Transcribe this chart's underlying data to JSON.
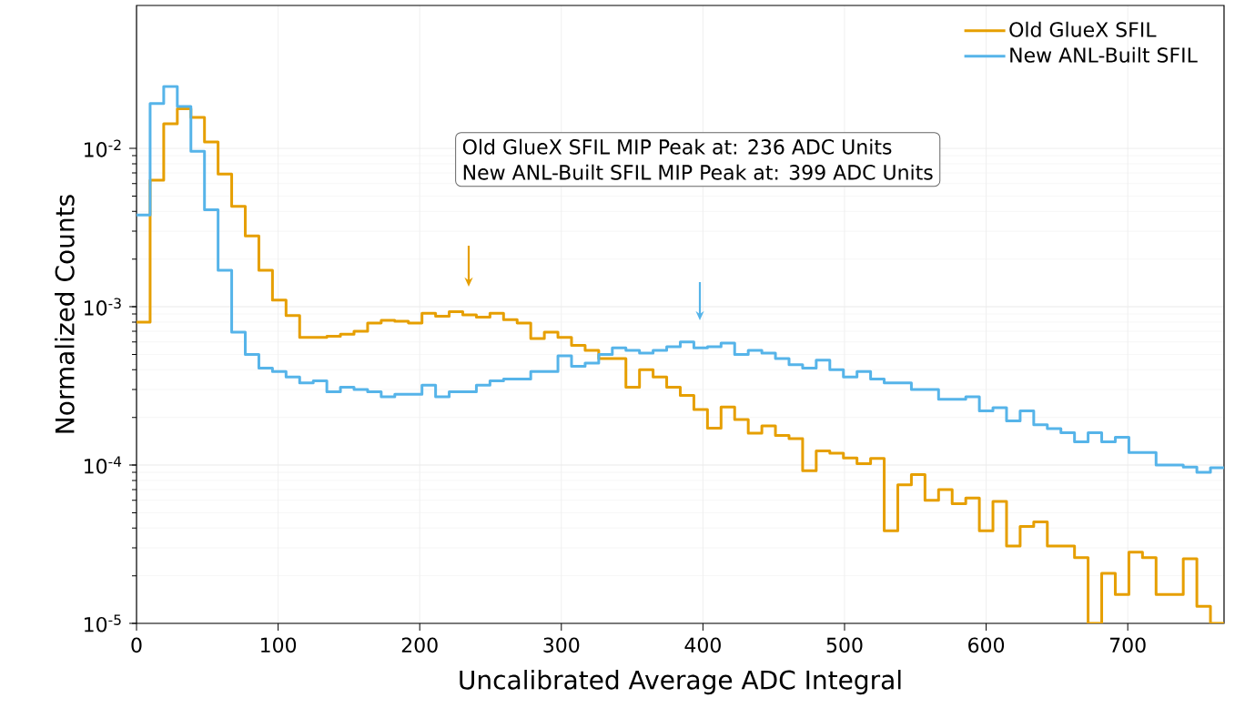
{
  "chart_data": {
    "type": "histogram",
    "xlabel": "Uncalibrated Average ADC Integral",
    "ylabel": "Normalized Counts",
    "bins": [
      0,
      9.6,
      19.2,
      28.8,
      38.4,
      48,
      57.6,
      67.2,
      76.8,
      86.4,
      96,
      105.6,
      115.2,
      124.8,
      134.4,
      144,
      153.6,
      163.2,
      172.8,
      182.4,
      192,
      201.6,
      211.2,
      220.8,
      230.4,
      240,
      249.6,
      259.2,
      268.8,
      278.4,
      288,
      297.6,
      307.2,
      316.8,
      326.4,
      336,
      345.6,
      355.2,
      364.8,
      374.4,
      384,
      393.6,
      403.2,
      412.8,
      422.4,
      432,
      441.6,
      451.2,
      460.8,
      470.4,
      480,
      489.6,
      499.2,
      508.8,
      518.4,
      528,
      537.6,
      547.2,
      556.8,
      566.4,
      576,
      585.6,
      595.2,
      604.8,
      614.4,
      624,
      633.6,
      643.2,
      652.8,
      662.4,
      672,
      681.6,
      691.2,
      700.8,
      710.4,
      720,
      729.6,
      739.2,
      748.8,
      758.4,
      768
    ],
    "series": [
      {
        "name": "Old GlueX SFIL",
        "color": "#e69f00",
        "values": [
          0.0008,
          0.0063,
          0.0143,
          0.0178,
          0.0157,
          0.011,
          0.0069,
          0.0043,
          0.0028,
          0.0017,
          0.0011,
          0.00088,
          0.00064,
          0.00064,
          0.00065,
          0.00067,
          0.0007,
          0.00079,
          0.00082,
          0.00081,
          0.00079,
          0.00091,
          0.00087,
          0.00093,
          0.00089,
          0.00086,
          0.00091,
          0.00083,
          0.00079,
          0.00063,
          0.00069,
          0.00064,
          0.00057,
          0.00053,
          0.00047,
          0.00047,
          0.00031,
          0.0004,
          0.00036,
          0.00031,
          0.000275,
          0.000224,
          0.000171,
          0.000233,
          0.000194,
          0.000159,
          0.000177,
          0.000154,
          0.000147,
          9.2e-05,
          0.000123,
          0.000119,
          0.000111,
          0.000102,
          0.00011,
          3.85e-05,
          7.5e-05,
          8.7e-05,
          6e-05,
          7e-05,
          5.7e-05,
          6.2e-05,
          3.85e-05,
          5.9e-05,
          3.08e-05,
          4.1e-05,
          4.37e-05,
          3.08e-05,
          3.08e-05,
          2.6e-05,
          1e-05,
          2.07e-05,
          1.52e-05,
          2.82e-05,
          2.6e-05,
          1.52e-05,
          1.52e-05,
          2.56e-05,
          1.28e-05,
          1e-05
        ]
      },
      {
        "name": "New ANL-Built SFIL",
        "color": "#56b4e9",
        "values": [
          0.0038,
          0.0192,
          0.0246,
          0.0184,
          0.0096,
          0.0041,
          0.0017,
          0.00069,
          0.0005,
          0.00041,
          0.00039,
          0.00036,
          0.00033,
          0.00034,
          0.00029,
          0.00031,
          0.0003,
          0.00029,
          0.00027,
          0.00028,
          0.00028,
          0.00032,
          0.00027,
          0.00029,
          0.00029,
          0.00032,
          0.00034,
          0.00035,
          0.00035,
          0.00039,
          0.00039,
          0.00049,
          0.00042,
          0.00044,
          0.0005,
          0.00055,
          0.00053,
          0.00051,
          0.00053,
          0.00056,
          0.0006,
          0.00055,
          0.00056,
          0.00059,
          0.0005,
          0.00053,
          0.00051,
          0.00047,
          0.00043,
          0.00041,
          0.00046,
          0.0004,
          0.00036,
          0.00039,
          0.00035,
          0.00033,
          0.00033,
          0.0003,
          0.0003,
          0.00026,
          0.00026,
          0.00027,
          0.00022,
          0.00023,
          0.00019,
          0.00022,
          0.00018,
          0.00017,
          0.00016,
          0.00014,
          0.00016,
          0.00014,
          0.00015,
          0.00012,
          0.00012,
          0.0001,
          0.0001,
          9.7e-05,
          9e-05,
          9.6e-05
        ]
      }
    ],
    "xlim": [
      0,
      768
    ],
    "ylim": [
      1e-05,
      0.08
    ],
    "log": "y",
    "xticks": [
      0,
      100,
      200,
      300,
      400,
      500,
      600,
      700
    ],
    "yticks": [
      {
        "value": 1e-05,
        "label": "10$^{-5}$"
      },
      {
        "value": 0.0001,
        "label": "10$^{-4}$"
      },
      {
        "value": 0.001,
        "label": "10$^{-3}$"
      },
      {
        "value": 0.01,
        "label": "10$^{-2}$"
      }
    ],
    "grid": true,
    "legend": "top right",
    "line_style": "solid",
    "marker": "none",
    "annotations": [
      "Old GlueX SFIL MIP Peak at: 236 ADC Units",
      "New ANL-Built SFIL MIP Peak at: 399 ADC Units"
    ]
  }
}
